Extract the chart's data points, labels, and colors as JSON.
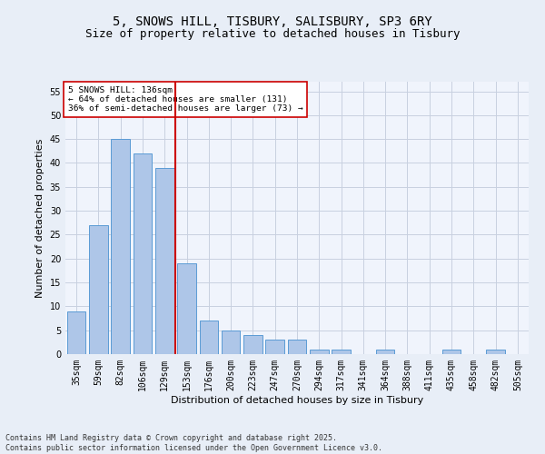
{
  "title1": "5, SNOWS HILL, TISBURY, SALISBURY, SP3 6RY",
  "title2": "Size of property relative to detached houses in Tisbury",
  "xlabel": "Distribution of detached houses by size in Tisbury",
  "ylabel": "Number of detached properties",
  "categories": [
    "35sqm",
    "59sqm",
    "82sqm",
    "106sqm",
    "129sqm",
    "153sqm",
    "176sqm",
    "200sqm",
    "223sqm",
    "247sqm",
    "270sqm",
    "294sqm",
    "317sqm",
    "341sqm",
    "364sqm",
    "388sqm",
    "411sqm",
    "435sqm",
    "458sqm",
    "482sqm",
    "505sqm"
  ],
  "values": [
    9,
    27,
    45,
    42,
    39,
    19,
    7,
    5,
    4,
    3,
    3,
    1,
    1,
    0,
    1,
    0,
    0,
    1,
    0,
    1,
    0
  ],
  "bar_color": "#aec6e8",
  "bar_edge_color": "#5b9bd5",
  "ylim": [
    0,
    57
  ],
  "yticks": [
    0,
    5,
    10,
    15,
    20,
    25,
    30,
    35,
    40,
    45,
    50,
    55
  ],
  "vline_x": 4.5,
  "vline_color": "#cc0000",
  "annotation_text_line1": "5 SNOWS HILL: 136sqm",
  "annotation_text_line2": "← 64% of detached houses are smaller (131)",
  "annotation_text_line3": "36% of semi-detached houses are larger (73) →",
  "background_color": "#e8eef7",
  "plot_bg_color": "#f0f4fc",
  "grid_color": "#c8d0e0",
  "footer_text": "Contains HM Land Registry data © Crown copyright and database right 2025.\nContains public sector information licensed under the Open Government Licence v3.0.",
  "title_fontsize": 10,
  "subtitle_fontsize": 9,
  "tick_fontsize": 7,
  "ylabel_fontsize": 8,
  "xlabel_fontsize": 8,
  "footer_fontsize": 6
}
